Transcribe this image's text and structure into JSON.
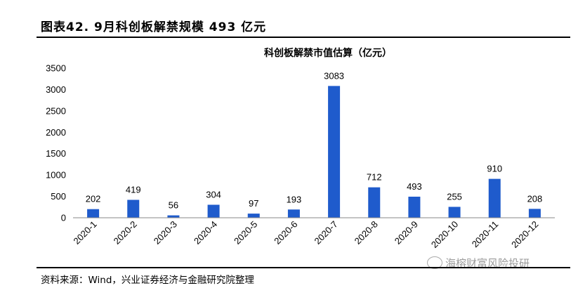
{
  "figure": {
    "title": "图表42.  9月科创板解禁规模 493 亿元",
    "source": "资料来源：Wind，兴业证券经济与金融研究院整理",
    "watermark": "海榕财富风险投研"
  },
  "chart_data": {
    "type": "bar",
    "title": "科创板解禁市值估算（亿元）",
    "categories": [
      "2020-1",
      "2020-2",
      "2020-3",
      "2020-4",
      "2020-5",
      "2020-6",
      "2020-7",
      "2020-8",
      "2020-9",
      "2020-10",
      "2020-11",
      "2020-12"
    ],
    "values": [
      202,
      419,
      56,
      304,
      97,
      193,
      3083,
      712,
      493,
      255,
      910,
      208
    ],
    "ylim": [
      0,
      3500
    ],
    "yticks": [
      0,
      500,
      1000,
      1500,
      2000,
      2500,
      3000,
      3500
    ],
    "xlabel": "",
    "ylabel": "",
    "grid": false,
    "legend": "none",
    "bar_color": "#1f5bcc",
    "data_labels": true
  }
}
